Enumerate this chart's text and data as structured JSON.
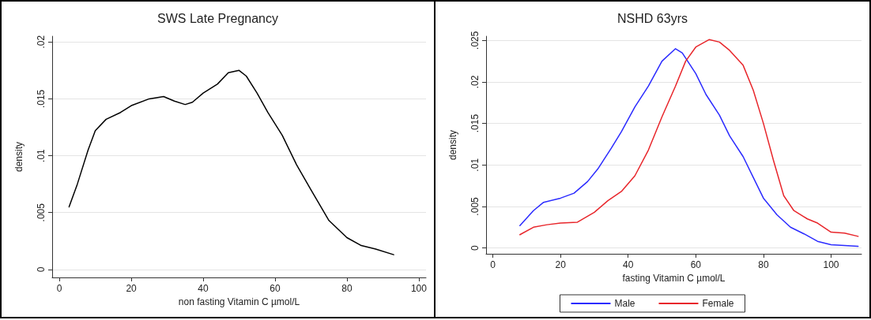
{
  "chart_data": [
    {
      "type": "line",
      "title": "SWS Late Pregnancy",
      "xlabel": "non fasting Vitamin C µmol/L",
      "ylabel": "density",
      "xlim": [
        -2,
        102
      ],
      "xticks": [
        0,
        20,
        40,
        60,
        80,
        100
      ],
      "ylim": [
        -0.0007,
        0.0205
      ],
      "yticks": [
        0,
        {
          "value": 0.005,
          "label": ".005"
        },
        {
          "value": 0.01,
          "label": ".01"
        },
        {
          "value": 0.015,
          "label": ".015"
        },
        {
          "value": 0.02,
          "label": ".02"
        }
      ],
      "grid": "y",
      "legend": false,
      "series": [
        {
          "color": "#000000",
          "x": [
            2.7,
            5,
            8,
            10,
            13,
            17,
            20,
            25,
            29,
            32,
            35,
            37,
            40,
            44,
            47,
            50,
            52,
            55,
            58,
            62,
            66,
            70,
            75,
            80,
            84,
            88,
            93
          ],
          "values": [
            0.0055,
            0.0075,
            0.0105,
            0.0122,
            0.0132,
            0.0138,
            0.0144,
            0.015,
            0.0152,
            0.0148,
            0.0145,
            0.0147,
            0.0155,
            0.0163,
            0.0173,
            0.0175,
            0.017,
            0.0155,
            0.0138,
            0.0118,
            0.0092,
            0.007,
            0.0043,
            0.0028,
            0.0021,
            0.0018,
            0.0013
          ]
        }
      ]
    },
    {
      "type": "line",
      "title": "NSHD 63yrs",
      "xlabel": "fasting Vitamin C µmol/L",
      "ylabel": "density",
      "xlim": [
        -2,
        109
      ],
      "xticks": [
        0,
        20,
        40,
        60,
        80,
        100
      ],
      "ylim": [
        -0.0007,
        0.0255
      ],
      "yticks": [
        0,
        {
          "value": 0.005,
          "label": ".005"
        },
        {
          "value": 0.01,
          "label": ".01"
        },
        {
          "value": 0.015,
          "label": ".015"
        },
        {
          "value": 0.02,
          "label": ".02"
        },
        {
          "value": 0.025,
          "label": ".025"
        }
      ],
      "grid": "y",
      "legend": "bottom",
      "series": [
        {
          "name": "Male",
          "color": "#2b2bff",
          "x": [
            8,
            12,
            15,
            20,
            24,
            28,
            31,
            35,
            38,
            42,
            46,
            50,
            54,
            56,
            60,
            63,
            67,
            70,
            74,
            77,
            80,
            84,
            88,
            92,
            96,
            100,
            108
          ],
          "values": [
            0.0027,
            0.0045,
            0.0055,
            0.006,
            0.0066,
            0.008,
            0.0095,
            0.012,
            0.014,
            0.017,
            0.0195,
            0.0225,
            0.024,
            0.0235,
            0.021,
            0.0185,
            0.016,
            0.0135,
            0.011,
            0.0085,
            0.006,
            0.004,
            0.0025,
            0.0017,
            0.0008,
            0.0004,
            0.0002
          ]
        },
        {
          "name": "Female",
          "color": "#e8262b",
          "x": [
            8,
            12,
            16,
            20,
            25,
            30,
            34,
            38,
            42,
            46,
            50,
            54,
            57,
            60,
            64,
            67,
            70,
            74,
            77,
            80,
            83,
            86,
            89,
            93,
            96,
            100,
            104,
            108
          ],
          "values": [
            0.0016,
            0.0025,
            0.0028,
            0.003,
            0.0031,
            0.0043,
            0.0057,
            0.0068,
            0.0087,
            0.0118,
            0.0158,
            0.0195,
            0.0225,
            0.0242,
            0.0251,
            0.0248,
            0.0238,
            0.022,
            0.019,
            0.015,
            0.0105,
            0.0063,
            0.0045,
            0.0035,
            0.003,
            0.0019,
            0.0018,
            0.0014
          ]
        }
      ]
    }
  ]
}
